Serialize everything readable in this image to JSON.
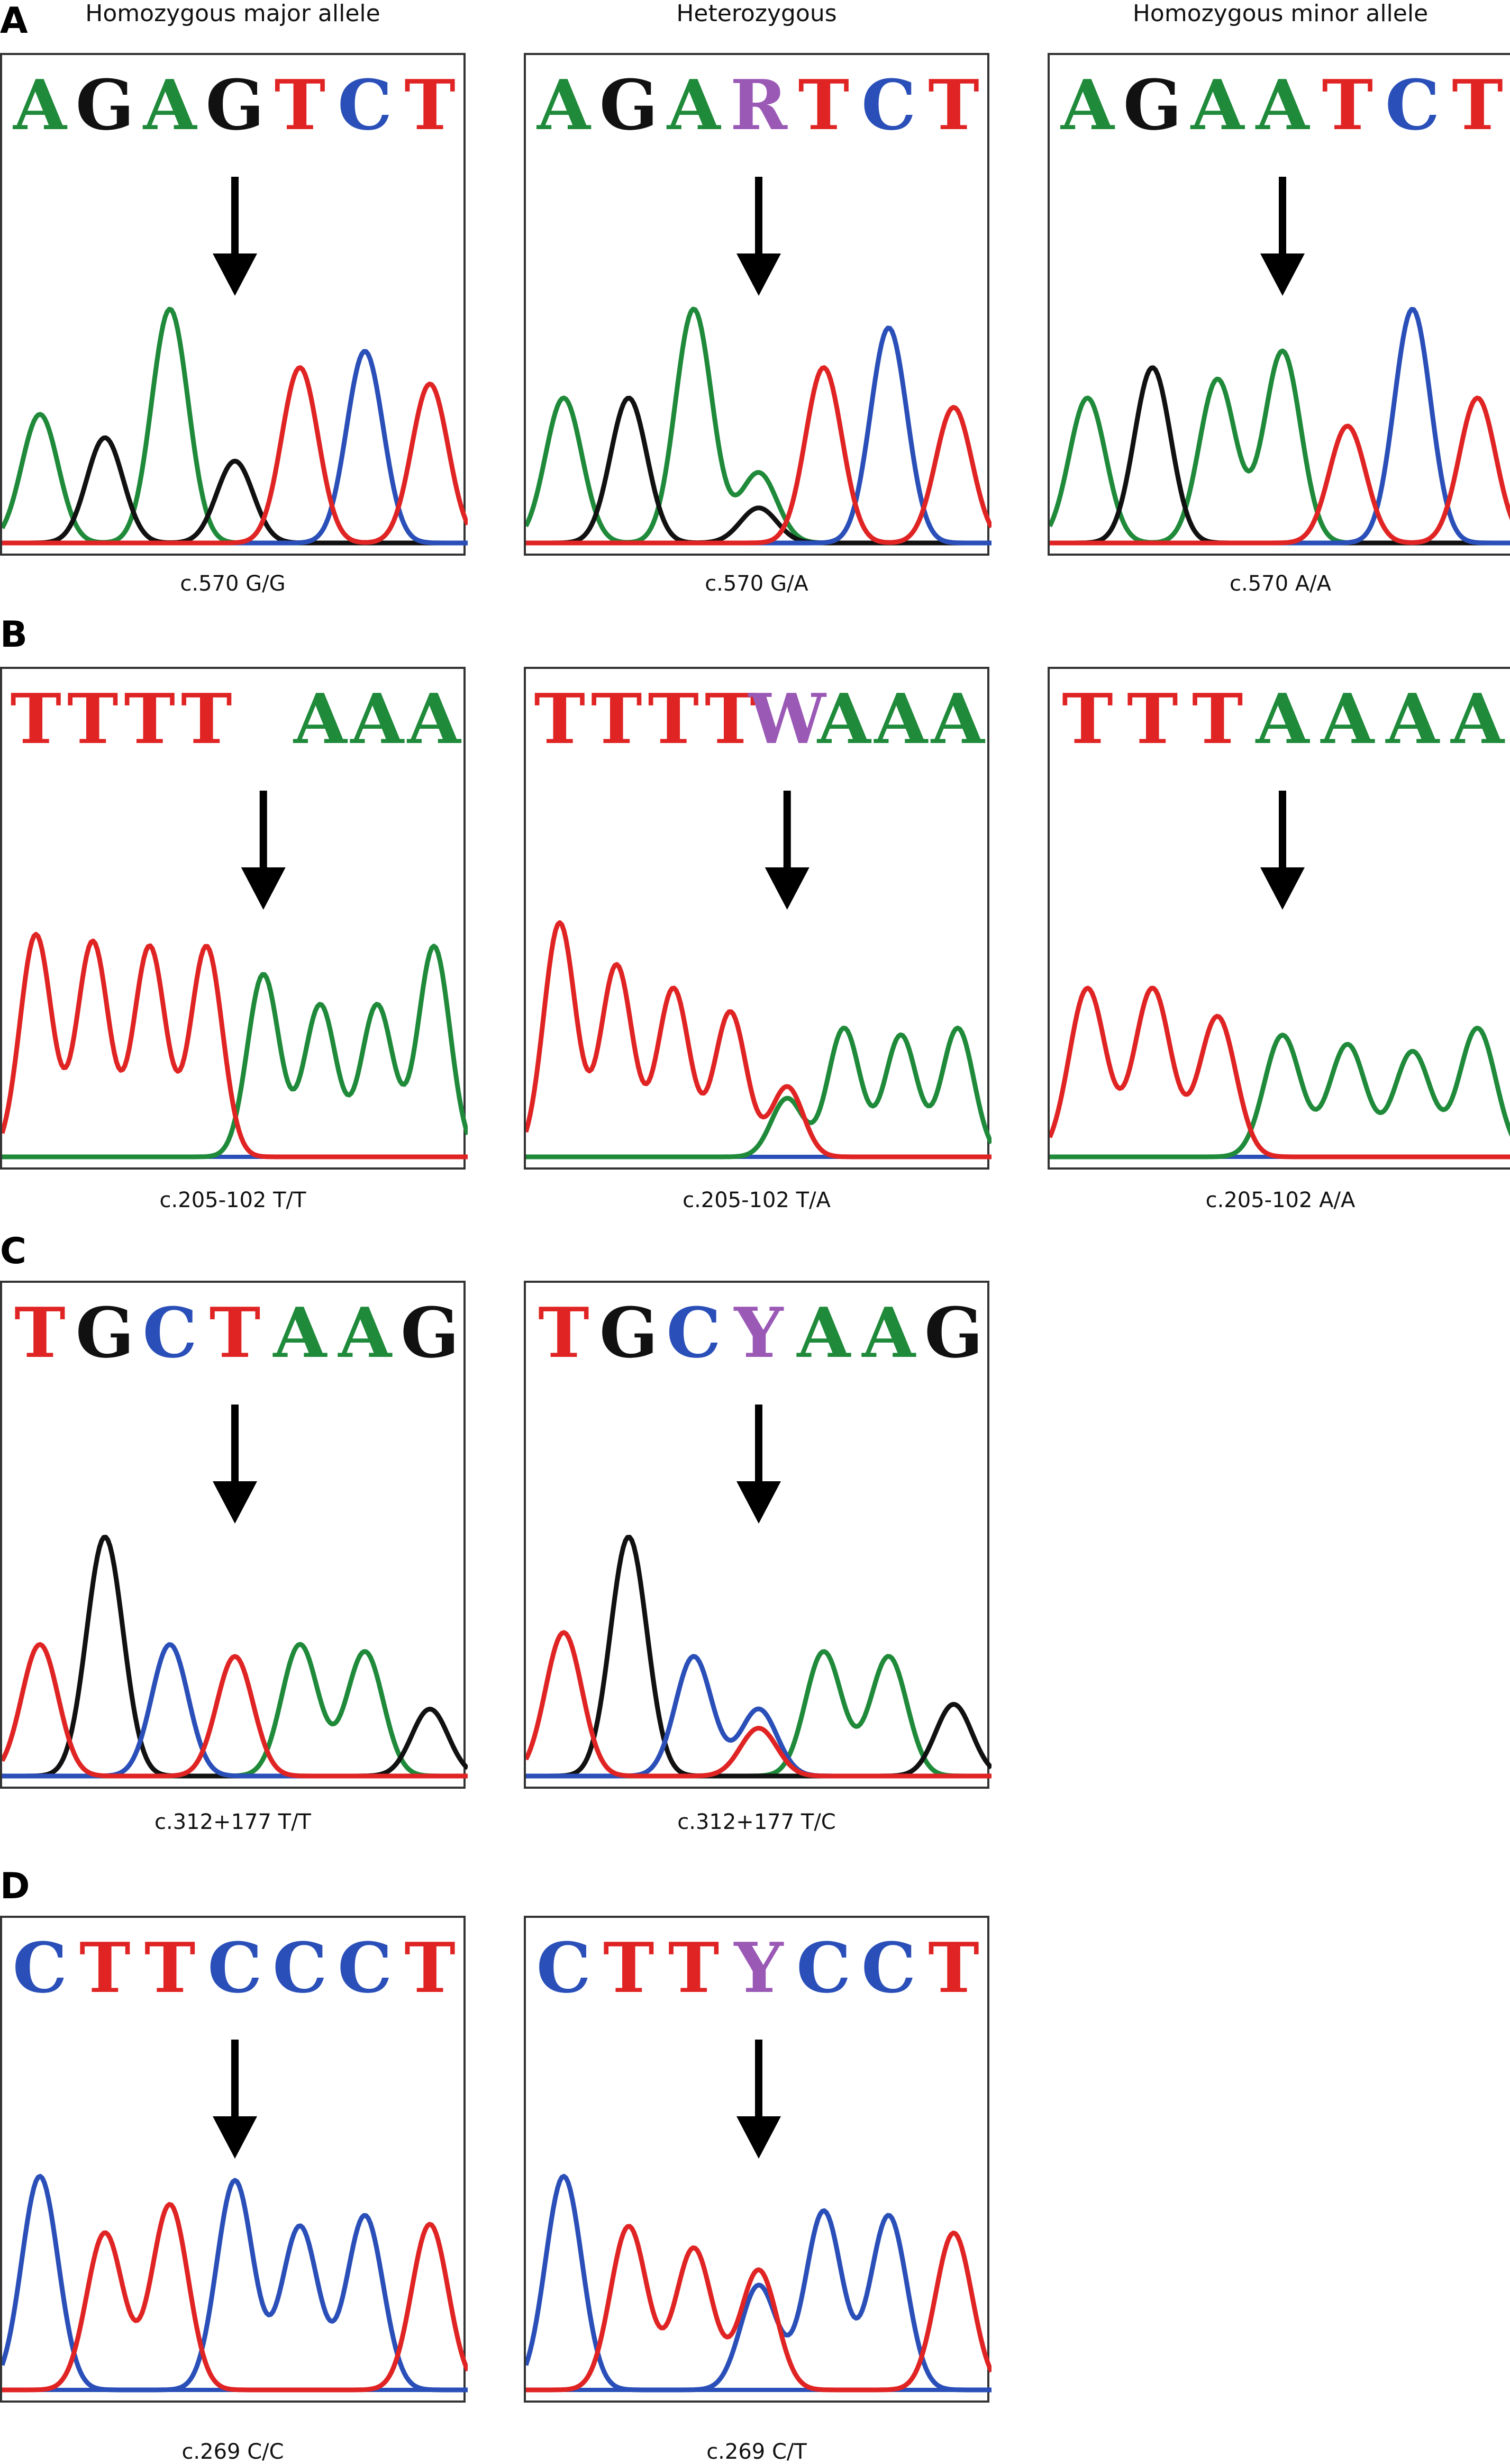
{
  "column_headers": [
    "Homozygous major allele",
    "Heterozygous",
    "Homozygous minor allele"
  ],
  "colors": {
    "A": "#1f8a3a",
    "G": "#111111",
    "C": "#2a4fb8",
    "T": "#e02424",
    "ambiguous": "#9b59b6",
    "baseline": "#2a4fb8"
  },
  "rows": [
    {
      "label": "A",
      "panels": [
        {
          "sequence": [
            "A",
            "G",
            "A",
            "G",
            "T",
            "C",
            "T"
          ],
          "caption": "c.570 G/G",
          "peaks": [
            "A:0.55",
            "G:0.45",
            "A:1.0",
            "G:0.35",
            "T:0.75",
            "C:0.82",
            "T:0.68"
          ]
        },
        {
          "sequence": [
            "A",
            "G",
            "A",
            "R",
            "T",
            "C",
            "T"
          ],
          "caption": "c.570 G/A",
          "peaks": [
            "A:0.62",
            "G:0.62",
            "A:1.0",
            "A:0.3|G:0.15",
            "T:0.75",
            "C:0.92",
            "T:0.58"
          ]
        },
        {
          "sequence": [
            "A",
            "G",
            "A",
            "A",
            "T",
            "C",
            "T"
          ],
          "caption": "c.570 A/A",
          "peaks": [
            "A:0.62",
            "G:0.75",
            "A:0.7",
            "A:0.82",
            "T:0.5",
            "C:1.0",
            "T:0.62"
          ]
        }
      ]
    },
    {
      "label": "B",
      "panels": [
        {
          "sequence": [
            "T",
            "T",
            "T",
            "T",
            " ",
            "A",
            "A",
            "A"
          ],
          "caption": "c.205-102 T/T",
          "peaks": [
            "T:0.95",
            "T:0.92",
            "T:0.9",
            "T:0.9",
            "A:0.78",
            "A:0.65",
            "A:0.65",
            "A:0.9"
          ]
        },
        {
          "sequence": [
            "T",
            "T",
            "T",
            "T",
            "W",
            "A",
            "A",
            "A"
          ],
          "caption": "c.205-102 T/A",
          "peaks": [
            "T:1.0",
            "T:0.82",
            "T:0.72",
            "T:0.62",
            "T:0.3|A:0.25",
            "A:0.55",
            "A:0.52",
            "A:0.55"
          ]
        },
        {
          "sequence": [
            "T",
            "T",
            "T",
            "A",
            "A",
            "A",
            "A"
          ],
          "caption": "c.205-102 A/A",
          "peaks": [
            "T:0.72",
            "T:0.72",
            "T:0.6",
            "A:0.52",
            "A:0.48",
            "A:0.45",
            "A:0.55"
          ]
        }
      ]
    },
    {
      "label": "C",
      "panels": [
        {
          "sequence": [
            "T",
            "G",
            "C",
            "T",
            "A",
            "A",
            "G"
          ],
          "caption": "c.312+177 T/T",
          "peaks": [
            "T:0.55",
            "G:1.0",
            "C:0.55",
            "T:0.5",
            "A:0.55",
            "A:0.52",
            "G:0.28"
          ]
        },
        {
          "sequence": [
            "T",
            "G",
            "C",
            "Y",
            "A",
            "A",
            "G"
          ],
          "caption": "c.312+177 T/C",
          "peaks": [
            "T:0.6",
            "G:1.0",
            "C:0.5",
            "C:0.28|T:0.2",
            "A:0.52",
            "A:0.5",
            "G:0.3"
          ]
        }
      ]
    },
    {
      "label": "D",
      "panels": [
        {
          "sequence": [
            "C",
            "T",
            "T",
            "C",
            "C",
            "C",
            "T"
          ],
          "caption": "c.269 C/C",
          "peaks": [
            "C:0.98",
            "T:0.72",
            "T:0.85",
            "C:0.96",
            "C:0.75",
            "C:0.8",
            "T:0.76"
          ]
        },
        {
          "sequence": [
            "C",
            "T",
            "T",
            "Y",
            "C",
            "C",
            "T"
          ],
          "caption": "c.269 C/T",
          "peaks": [
            "C:0.98",
            "T:0.75",
            "T:0.65",
            "C:0.48|T:0.55",
            "C:0.82",
            "C:0.8",
            "T:0.72"
          ]
        }
      ]
    }
  ]
}
